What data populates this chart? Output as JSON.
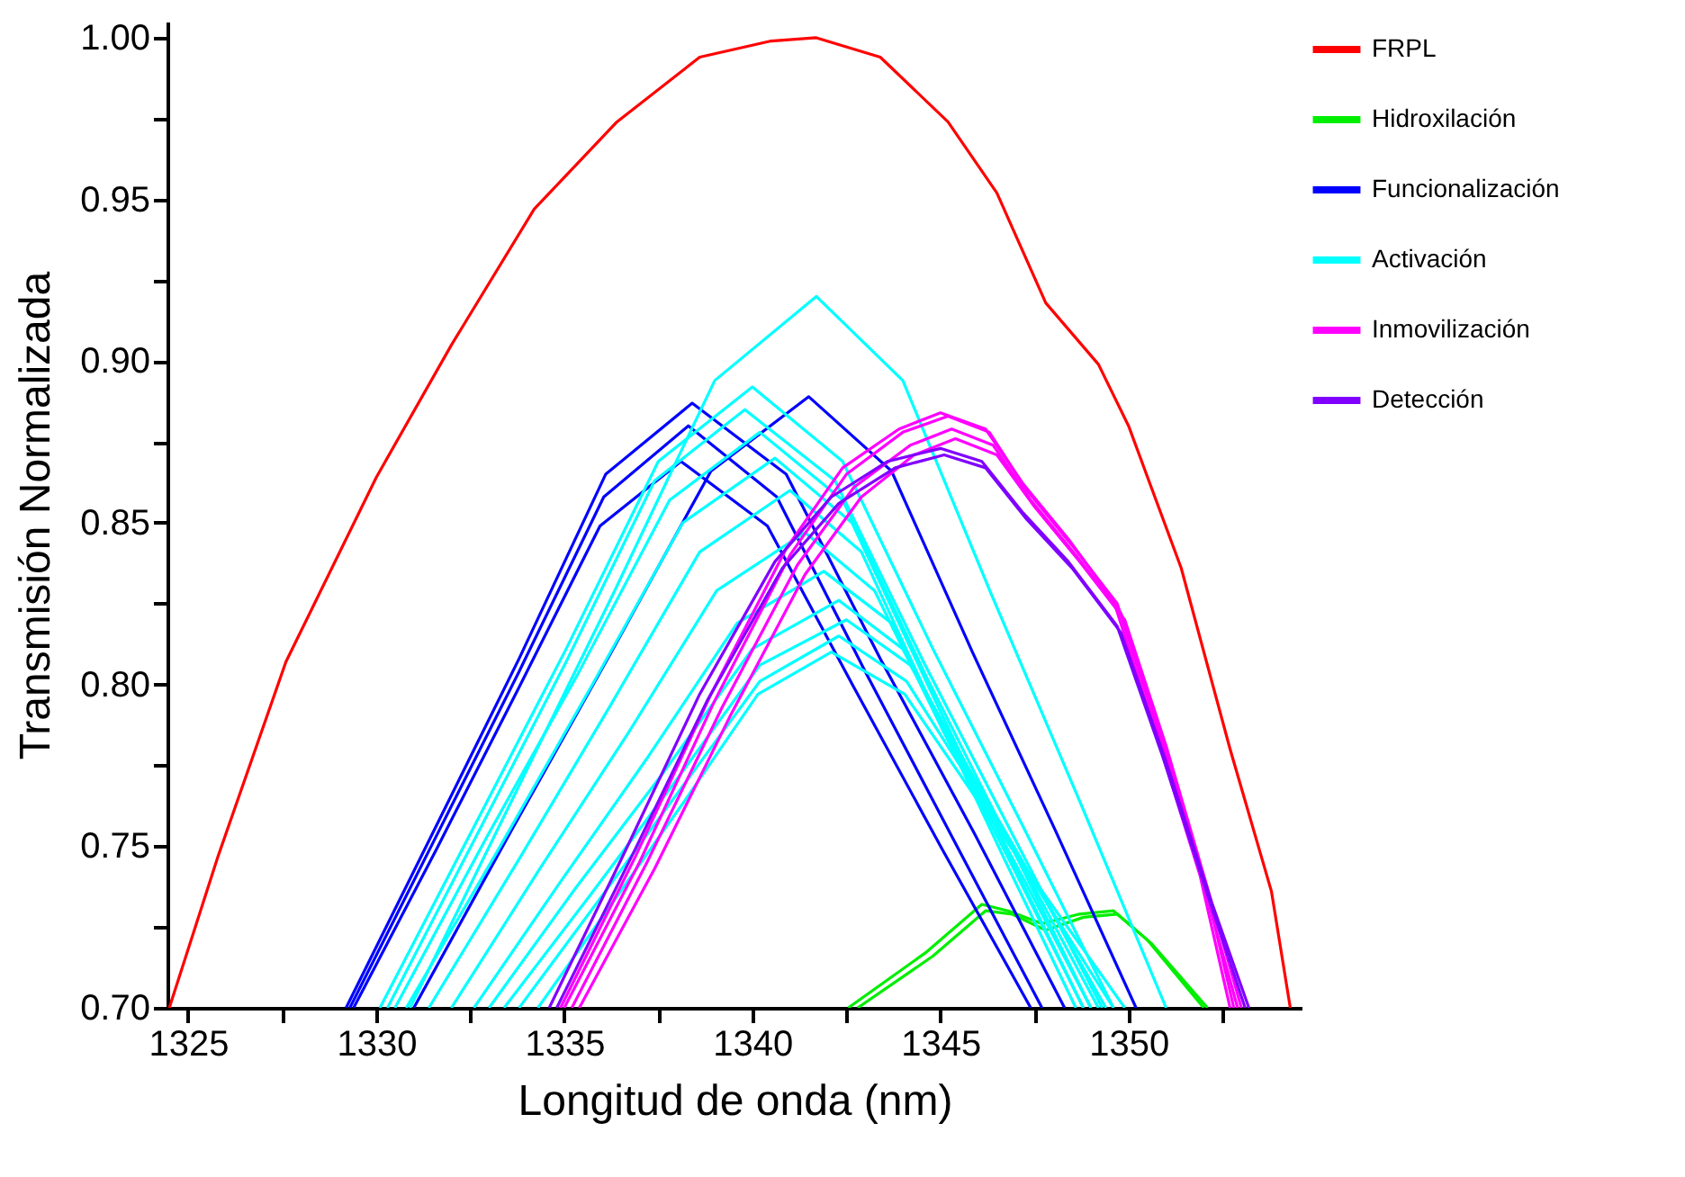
{
  "chart_data": {
    "type": "line",
    "xlabel": "Longitud de onda (nm)",
    "ylabel": "Transmisión Normalizada",
    "xlim": [
      1324.45,
      1354.6
    ],
    "ylim": [
      0.7,
      1.005
    ],
    "xticks": [
      1325,
      {
        "value": 1327.5,
        "label": null
      },
      1330,
      {
        "value": 1332.5,
        "label": null
      },
      1335,
      {
        "value": 1337.5,
        "label": null
      },
      1340,
      {
        "value": 1342.5,
        "label": null
      },
      1345,
      {
        "value": 1347.5,
        "label": null
      },
      1350,
      {
        "value": 1352.5,
        "label": null
      }
    ],
    "yticks": [
      {
        "value": 0.7,
        "label": "0.70"
      },
      {
        "value": 0.725,
        "label": null
      },
      {
        "value": 0.75,
        "label": "0.75"
      },
      {
        "value": 0.775,
        "label": null
      },
      {
        "value": 0.8,
        "label": "0.80"
      },
      {
        "value": 0.825,
        "label": null
      },
      {
        "value": 0.85,
        "label": "0.85"
      },
      {
        "value": 0.875,
        "label": null
      },
      {
        "value": 0.9,
        "label": "0.90"
      },
      {
        "value": 0.925,
        "label": null
      },
      {
        "value": 0.95,
        "label": "0.95"
      },
      {
        "value": 0.975,
        "label": null
      },
      {
        "value": 1.0,
        "label": "1.00"
      }
    ],
    "grid": false,
    "legend": "top right",
    "marker": "none",
    "line_style": "solid",
    "series": [
      {
        "name": "FRPL",
        "color": "#ff0000",
        "x": [
          1324.5,
          1325.8,
          1327.6,
          1330.0,
          1332.0,
          1334.2,
          1336.4,
          1338.6,
          1340.5,
          1341.7,
          1343.4,
          1345.2,
          1346.5,
          1347.8,
          1349.2,
          1350.0,
          1351.4,
          1352.7,
          1353.8,
          1354.3
        ],
        "values": [
          0.7,
          0.747,
          0.807,
          0.864,
          0.905,
          0.947,
          0.974,
          0.994,
          0.999,
          1.0,
          0.994,
          0.974,
          0.952,
          0.918,
          0.899,
          0.88,
          0.836,
          0.78,
          0.736,
          0.7
        ]
      },
      {
        "name": "Hidroxilación",
        "color": "#00ee00",
        "x": [
          1342.55,
          1344.6,
          1346.1,
          1346.8,
          1347.7,
          1348.7,
          1349.6,
          1350.5,
          1352.0
        ],
        "values": [
          0.7,
          0.717,
          0.732,
          0.73,
          0.726,
          0.729,
          0.73,
          0.721,
          0.7
        ]
      },
      {
        "color": "#00ee00",
        "x": [
          1342.8,
          1344.8,
          1346.2,
          1346.9,
          1347.8,
          1348.8,
          1349.7,
          1350.6,
          1352.1
        ],
        "values": [
          0.7,
          0.716,
          0.73,
          0.729,
          0.724,
          0.728,
          0.729,
          0.72,
          0.7
        ]
      },
      {
        "name": "Funcionalización",
        "color": "#0000ff",
        "x": [
          1329.2,
          1331.5,
          1333.8,
          1336.1,
          1338.4,
          1340.9,
          1343.4,
          1345.9,
          1348.3
        ],
        "values": [
          0.7,
          0.754,
          0.808,
          0.865,
          0.887,
          0.865,
          0.808,
          0.754,
          0.7
        ]
      },
      {
        "color": "#0000ff",
        "x": [
          1329.3,
          1331.55,
          1333.8,
          1336.05,
          1338.3,
          1340.65,
          1343.0,
          1345.35,
          1347.7
        ],
        "values": [
          0.7,
          0.752,
          0.804,
          0.858,
          0.88,
          0.858,
          0.804,
          0.752,
          0.7
        ]
      },
      {
        "color": "#0000ff",
        "x": [
          1329.4,
          1331.6,
          1333.75,
          1335.95,
          1338.1,
          1340.4,
          1342.75,
          1345.05,
          1347.4
        ],
        "values": [
          0.7,
          0.749,
          0.798,
          0.849,
          0.869,
          0.849,
          0.798,
          0.749,
          0.7
        ]
      },
      {
        "color": "#0000ff",
        "x": [
          1331.0,
          1333.6,
          1336.25,
          1338.9,
          1341.5,
          1343.7,
          1345.85,
          1348.05,
          1350.2
        ],
        "values": [
          0.7,
          0.755,
          0.81,
          0.866,
          0.889,
          0.866,
          0.81,
          0.755,
          0.7
        ]
      },
      {
        "name": "Activación",
        "color": "#00ffff",
        "x": [
          1330.9,
          1333.6,
          1336.3,
          1339.0,
          1341.7,
          1344.0,
          1346.35,
          1348.7,
          1351.0
        ],
        "values": [
          0.7,
          0.764,
          0.828,
          0.894,
          0.92,
          0.894,
          0.828,
          0.764,
          0.7
        ]
      },
      {
        "color": "#00ffff",
        "x": [
          1330.1,
          1332.6,
          1335.05,
          1337.5,
          1340.0,
          1342.4,
          1344.8,
          1347.2,
          1349.6
        ],
        "values": [
          0.7,
          0.756,
          0.811,
          0.869,
          0.892,
          0.869,
          0.811,
          0.756,
          0.7
        ]
      },
      {
        "color": "#00ffff",
        "x": [
          1330.3,
          1332.7,
          1335.05,
          1337.4,
          1339.8,
          1342.2,
          1344.55,
          1346.9,
          1349.3
        ],
        "values": [
          0.7,
          0.754,
          0.807,
          0.863,
          0.885,
          0.863,
          0.807,
          0.754,
          0.7
        ]
      },
      {
        "color": "#00ffff",
        "x": [
          1330.5,
          1332.9,
          1335.35,
          1337.8,
          1340.2,
          1342.4,
          1344.6,
          1346.8,
          1349.0
        ],
        "values": [
          0.7,
          0.752,
          0.803,
          0.857,
          0.878,
          0.857,
          0.803,
          0.752,
          0.7
        ]
      },
      {
        "color": "#00ffff",
        "x": [
          1330.8,
          1333.25,
          1335.7,
          1338.15,
          1340.6,
          1342.65,
          1344.7,
          1346.75,
          1348.8
        ],
        "values": [
          0.7,
          0.749,
          0.799,
          0.85,
          0.87,
          0.85,
          0.799,
          0.749,
          0.7
        ]
      },
      {
        "color": "#00ffff",
        "x": [
          1331.4,
          1333.8,
          1336.2,
          1338.6,
          1341.0,
          1342.9,
          1344.8,
          1346.7,
          1348.6
        ],
        "values": [
          0.7,
          0.746,
          0.793,
          0.841,
          0.86,
          0.841,
          0.793,
          0.746,
          0.7
        ]
      },
      {
        "color": "#00ffff",
        "x": [
          1332.0,
          1334.35,
          1336.7,
          1339.05,
          1341.4,
          1343.25,
          1345.1,
          1346.95,
          1348.8
        ],
        "values": [
          0.7,
          0.743,
          0.785,
          0.829,
          0.847,
          0.829,
          0.785,
          0.743,
          0.7
        ]
      },
      {
        "color": "#00ffff",
        "x": [
          1332.6,
          1334.9,
          1337.25,
          1339.6,
          1341.9,
          1343.7,
          1345.45,
          1347.25,
          1349.0
        ],
        "values": [
          0.7,
          0.739,
          0.778,
          0.819,
          0.835,
          0.819,
          0.778,
          0.739,
          0.7
        ]
      },
      {
        "color": "#00ffff",
        "x": [
          1333.0,
          1335.3,
          1337.65,
          1340.0,
          1342.3,
          1344.0,
          1345.75,
          1347.5,
          1349.2
        ],
        "values": [
          0.7,
          0.737,
          0.773,
          0.811,
          0.826,
          0.811,
          0.773,
          0.737,
          0.7
        ]
      },
      {
        "color": "#00ffff",
        "x": [
          1333.4,
          1335.7,
          1337.95,
          1340.2,
          1342.5,
          1344.2,
          1345.95,
          1347.7,
          1349.4
        ],
        "values": [
          0.7,
          0.735,
          0.77,
          0.806,
          0.82,
          0.806,
          0.77,
          0.735,
          0.7
        ]
      },
      {
        "color": "#00ffff",
        "x": [
          1333.8,
          1335.9,
          1338.05,
          1340.2,
          1342.3,
          1344.1,
          1345.95,
          1347.8,
          1349.6
        ],
        "values": [
          0.7,
          0.733,
          0.767,
          0.801,
          0.815,
          0.801,
          0.767,
          0.733,
          0.7
        ]
      },
      {
        "color": "#00ffff",
        "x": [
          1334.3,
          1336.25,
          1338.2,
          1340.15,
          1342.1,
          1344.05,
          1346.0,
          1347.95,
          1349.9
        ],
        "values": [
          0.7,
          0.732,
          0.764,
          0.797,
          0.81,
          0.797,
          0.764,
          0.732,
          0.7
        ]
      },
      {
        "name": "Inmovilización",
        "color": "#ff00ff",
        "x": [
          1335.0,
          1337.0,
          1339.0,
          1341.0,
          1342.5,
          1344.0,
          1345.2,
          1346.3,
          1347.3,
          1348.5,
          1349.7,
          1350.8,
          1352.0,
          1352.8
        ],
        "values": [
          0.7,
          0.745,
          0.795,
          0.84,
          0.865,
          0.878,
          0.883,
          0.878,
          0.86,
          0.843,
          0.825,
          0.785,
          0.74,
          0.7
        ]
      },
      {
        "color": "#ff00ff",
        "x": [
          1335.2,
          1337.2,
          1339.2,
          1341.2,
          1342.7,
          1344.2,
          1345.3,
          1346.4,
          1347.4,
          1348.6,
          1349.8,
          1350.9,
          1352.0,
          1352.9
        ],
        "values": [
          0.7,
          0.745,
          0.793,
          0.837,
          0.861,
          0.874,
          0.879,
          0.874,
          0.857,
          0.84,
          0.822,
          0.783,
          0.738,
          0.7
        ]
      },
      {
        "color": "#ff00ff",
        "x": [
          1335.4,
          1337.4,
          1339.4,
          1341.4,
          1342.9,
          1344.3,
          1345.4,
          1346.5,
          1347.5,
          1348.7,
          1349.9,
          1351.0,
          1352.1,
          1353.0
        ],
        "values": [
          0.7,
          0.743,
          0.79,
          0.834,
          0.858,
          0.871,
          0.876,
          0.871,
          0.855,
          0.838,
          0.82,
          0.781,
          0.737,
          0.7
        ]
      },
      {
        "color": "#ff00ff",
        "x": [
          1334.9,
          1336.9,
          1338.9,
          1340.9,
          1342.4,
          1343.9,
          1345.0,
          1346.2,
          1347.2,
          1348.4,
          1349.6,
          1350.7,
          1351.9,
          1352.7
        ],
        "values": [
          0.7,
          0.747,
          0.797,
          0.842,
          0.867,
          0.879,
          0.884,
          0.879,
          0.862,
          0.845,
          0.826,
          0.786,
          0.741,
          0.7
        ]
      },
      {
        "name": "Detección",
        "color": "#8000ff",
        "x": [
          1334.6,
          1336.6,
          1338.6,
          1340.6,
          1342.1,
          1343.6,
          1345.0,
          1346.1,
          1347.2,
          1348.4,
          1349.7,
          1350.9,
          1352.1,
          1353.1
        ],
        "values": [
          0.7,
          0.748,
          0.797,
          0.838,
          0.858,
          0.869,
          0.873,
          0.869,
          0.853,
          0.838,
          0.818,
          0.778,
          0.735,
          0.7
        ]
      },
      {
        "color": "#8000ff",
        "x": [
          1334.8,
          1336.8,
          1338.8,
          1340.8,
          1342.3,
          1343.8,
          1345.1,
          1346.2,
          1347.3,
          1348.5,
          1349.8,
          1351.0,
          1352.2,
          1353.2
        ],
        "values": [
          0.7,
          0.747,
          0.795,
          0.836,
          0.856,
          0.867,
          0.871,
          0.867,
          0.851,
          0.836,
          0.816,
          0.776,
          0.733,
          0.7
        ]
      }
    ]
  }
}
